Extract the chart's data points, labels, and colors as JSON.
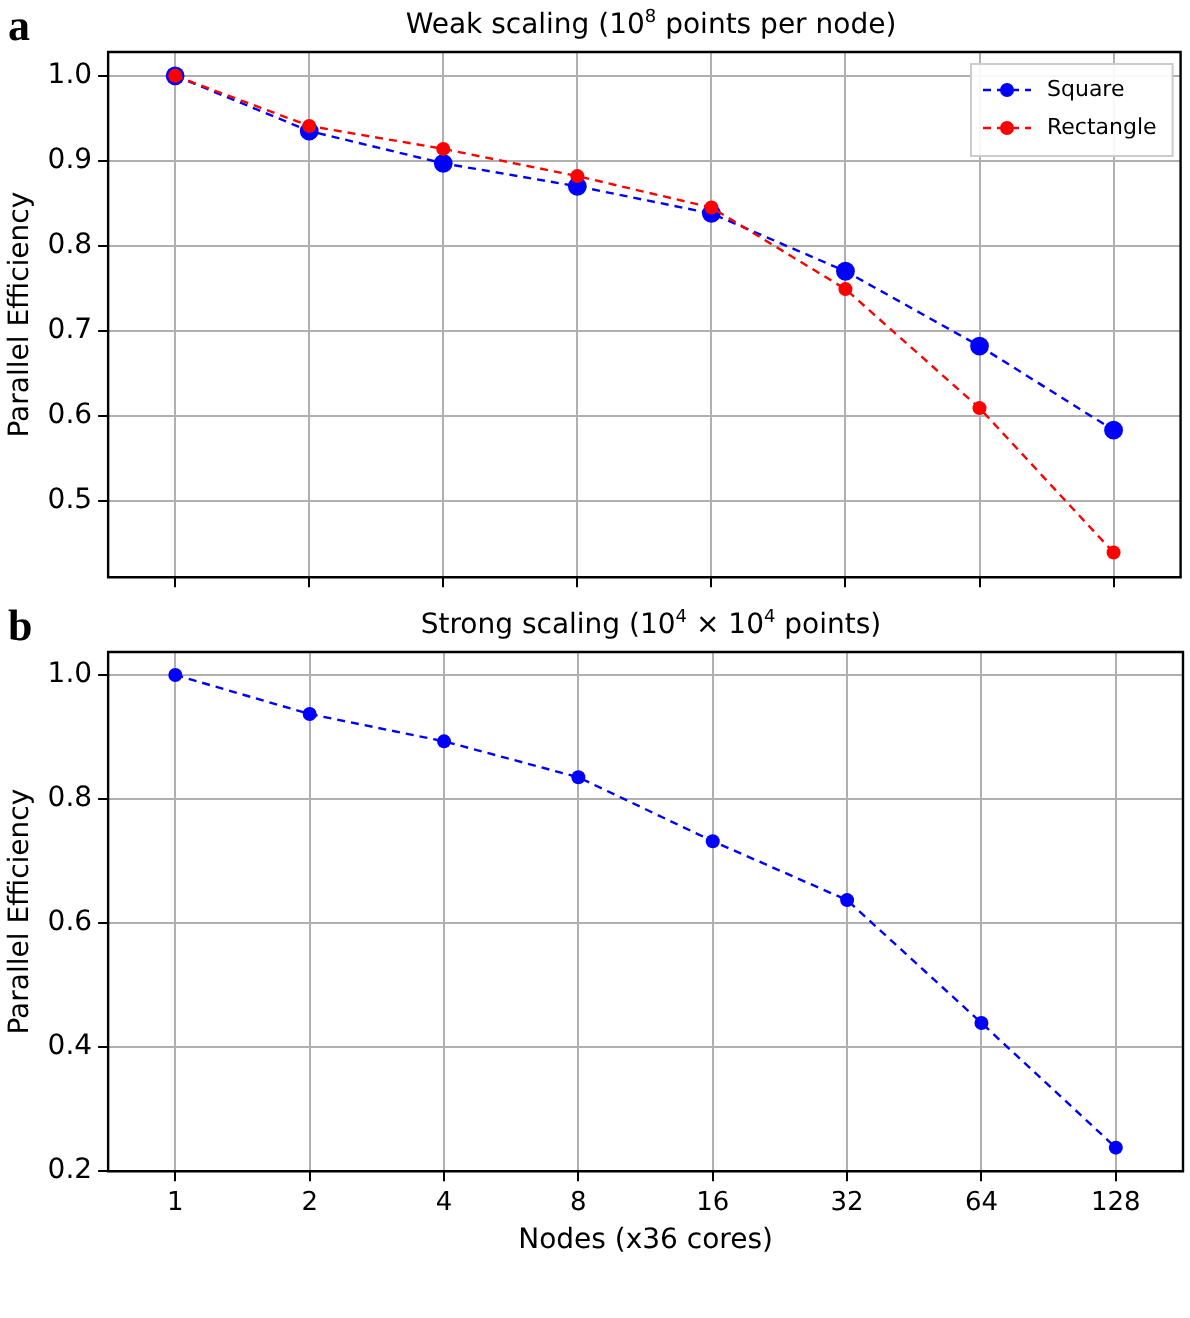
{
  "chart_data": [
    {
      "type": "line",
      "title": "Weak scaling (10$^{8}$ points per node)",
      "ylabel": "Parallel Efficiency",
      "annotations": [
        "a"
      ],
      "categories": [
        "1",
        "2",
        "4",
        "8",
        "16",
        "32",
        "64",
        "128"
      ],
      "series": [
        {
          "name": "Square",
          "color": "#0000ff",
          "values": [
            1.0,
            0.935,
            0.897,
            0.87,
            0.838,
            0.77,
            0.682,
            0.583
          ]
        },
        {
          "name": "Rectangle",
          "color": "#ff0000",
          "values": [
            1.0,
            0.941,
            0.914,
            0.882,
            0.845,
            0.749,
            0.609,
            0.439
          ]
        }
      ],
      "ylim": [
        0.41,
        1.028
      ],
      "yticks": [
        0.5,
        0.6,
        0.7,
        0.8,
        0.9,
        {
          "value": 1.0,
          "label": "1.0"
        }
      ],
      "tick_labels": "y",
      "grid": true,
      "legend": "top right",
      "marker": "circle",
      "line_style": "dashed"
    },
    {
      "type": "line",
      "title": "Strong scaling (10$^{4}$ × 10$^{4}$ points)",
      "ylabel": "Parallel Efficiency",
      "xlabel": "Nodes (x36 cores)",
      "annotations": [
        "b"
      ],
      "categories": [
        "1",
        "2",
        "4",
        "8",
        "16",
        "32",
        "64",
        "128"
      ],
      "series": [
        {
          "color": "#0000ff",
          "values": [
            1.0,
            0.937,
            0.893,
            0.835,
            0.732,
            0.637,
            0.439,
            0.238
          ]
        }
      ],
      "ylim": [
        0.2,
        1.037
      ],
      "yticks": [
        0.2,
        0.4,
        0.6,
        0.8,
        {
          "value": 1.0,
          "label": "1.0"
        }
      ],
      "grid": true,
      "marker": "circle",
      "line_style": "dashed"
    }
  ]
}
